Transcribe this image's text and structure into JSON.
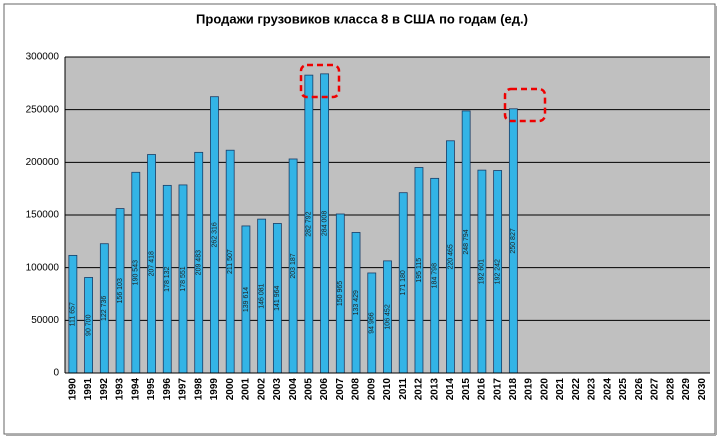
{
  "chart_data": {
    "type": "bar",
    "title": "Продажи грузовиков класса 8 в США по годам (ед.)",
    "categories": [
      "1990",
      "1991",
      "1992",
      "1993",
      "1994",
      "1995",
      "1996",
      "1997",
      "1998",
      "1999",
      "2000",
      "2001",
      "2002",
      "2003",
      "2004",
      "2005",
      "2006",
      "2007",
      "2008",
      "2009",
      "2010",
      "2011",
      "2012",
      "2013",
      "2014",
      "2015",
      "2016",
      "2017",
      "2018",
      "2019",
      "2020",
      "2021",
      "2022",
      "2023",
      "2024",
      "2025",
      "2026",
      "2027",
      "2028",
      "2029",
      "2030"
    ],
    "values": [
      111657,
      90700,
      122736,
      156103,
      190543,
      207418,
      178132,
      178551,
      209483,
      262316,
      211507,
      139614,
      146081,
      141964,
      203187,
      282792,
      284008,
      150965,
      133429,
      94966,
      106452,
      171180,
      195115,
      184798,
      220465,
      248794,
      192601,
      192242,
      250827,
      null,
      null,
      null,
      null,
      null,
      null,
      null,
      null,
      null,
      null,
      null,
      null
    ],
    "value_labels": [
      "111 657",
      "90 700",
      "122 736",
      "156 103",
      "190 543",
      "207 418",
      "178 132",
      "178 551",
      "209 483",
      "262 316",
      "211 507",
      "139 614",
      "146 081",
      "141 964",
      "203 187",
      "282 792",
      "284 008",
      "150 965",
      "133 429",
      "94 966",
      "106 452",
      "171 180",
      "195 115",
      "184 798",
      "220 465",
      "248 794",
      "192 601",
      "192 242",
      "250 827",
      null,
      null,
      null,
      null,
      null,
      null,
      null,
      null,
      null,
      null,
      null,
      null
    ],
    "color": "#33b4e6",
    "ylim": [
      0,
      300000
    ],
    "yticks": [
      0,
      50000,
      100000,
      150000,
      200000,
      250000,
      300000
    ],
    "grid": true
  }
}
